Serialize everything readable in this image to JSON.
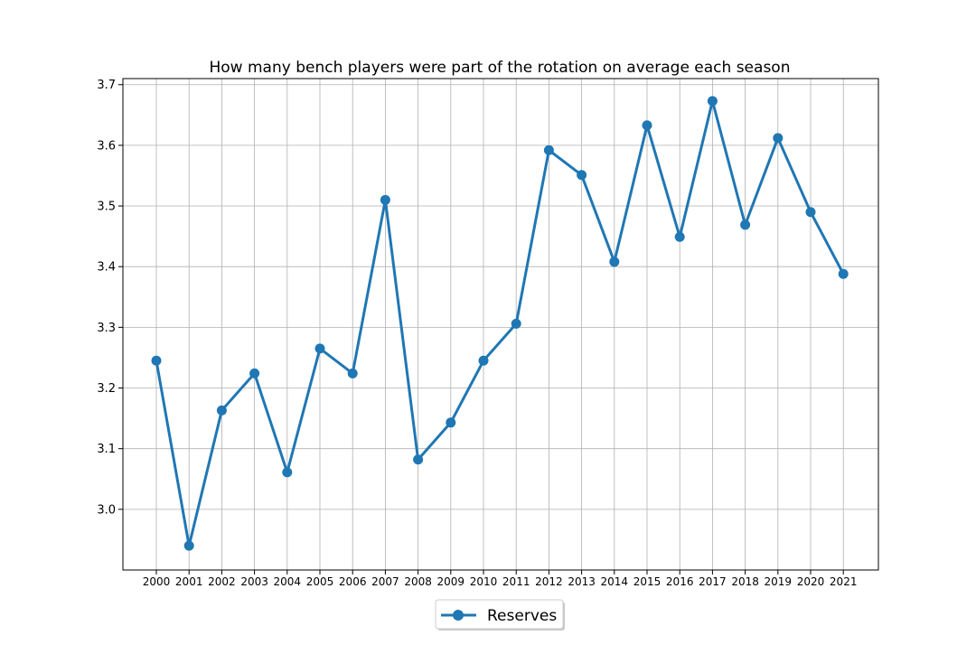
{
  "chart_data": {
    "type": "line",
    "title": "How many bench players were part of the rotation on average each season",
    "xlabel": "",
    "ylabel": "",
    "categories": [
      "2000",
      "2001",
      "2002",
      "2003",
      "2004",
      "2005",
      "2006",
      "2007",
      "2008",
      "2009",
      "2010",
      "2011",
      "2012",
      "2013",
      "2014",
      "2015",
      "2016",
      "2017",
      "2018",
      "2019",
      "2020",
      "2021"
    ],
    "series": [
      {
        "name": "Reserves",
        "color": "#1f77b4",
        "marker": "circle",
        "values": [
          3.245,
          2.94,
          3.163,
          3.224,
          3.061,
          3.265,
          3.224,
          3.51,
          3.082,
          3.143,
          3.245,
          3.306,
          3.592,
          3.551,
          3.408,
          3.633,
          3.449,
          3.673,
          3.469,
          3.612,
          3.49,
          3.388
        ]
      }
    ],
    "ylim": [
      2.9,
      3.71
    ],
    "yticks": [
      "3.0",
      "3.1",
      "3.2",
      "3.3",
      "3.4",
      "3.5",
      "3.6",
      "3.7"
    ],
    "grid": true,
    "legend_position": "bottom-center"
  }
}
